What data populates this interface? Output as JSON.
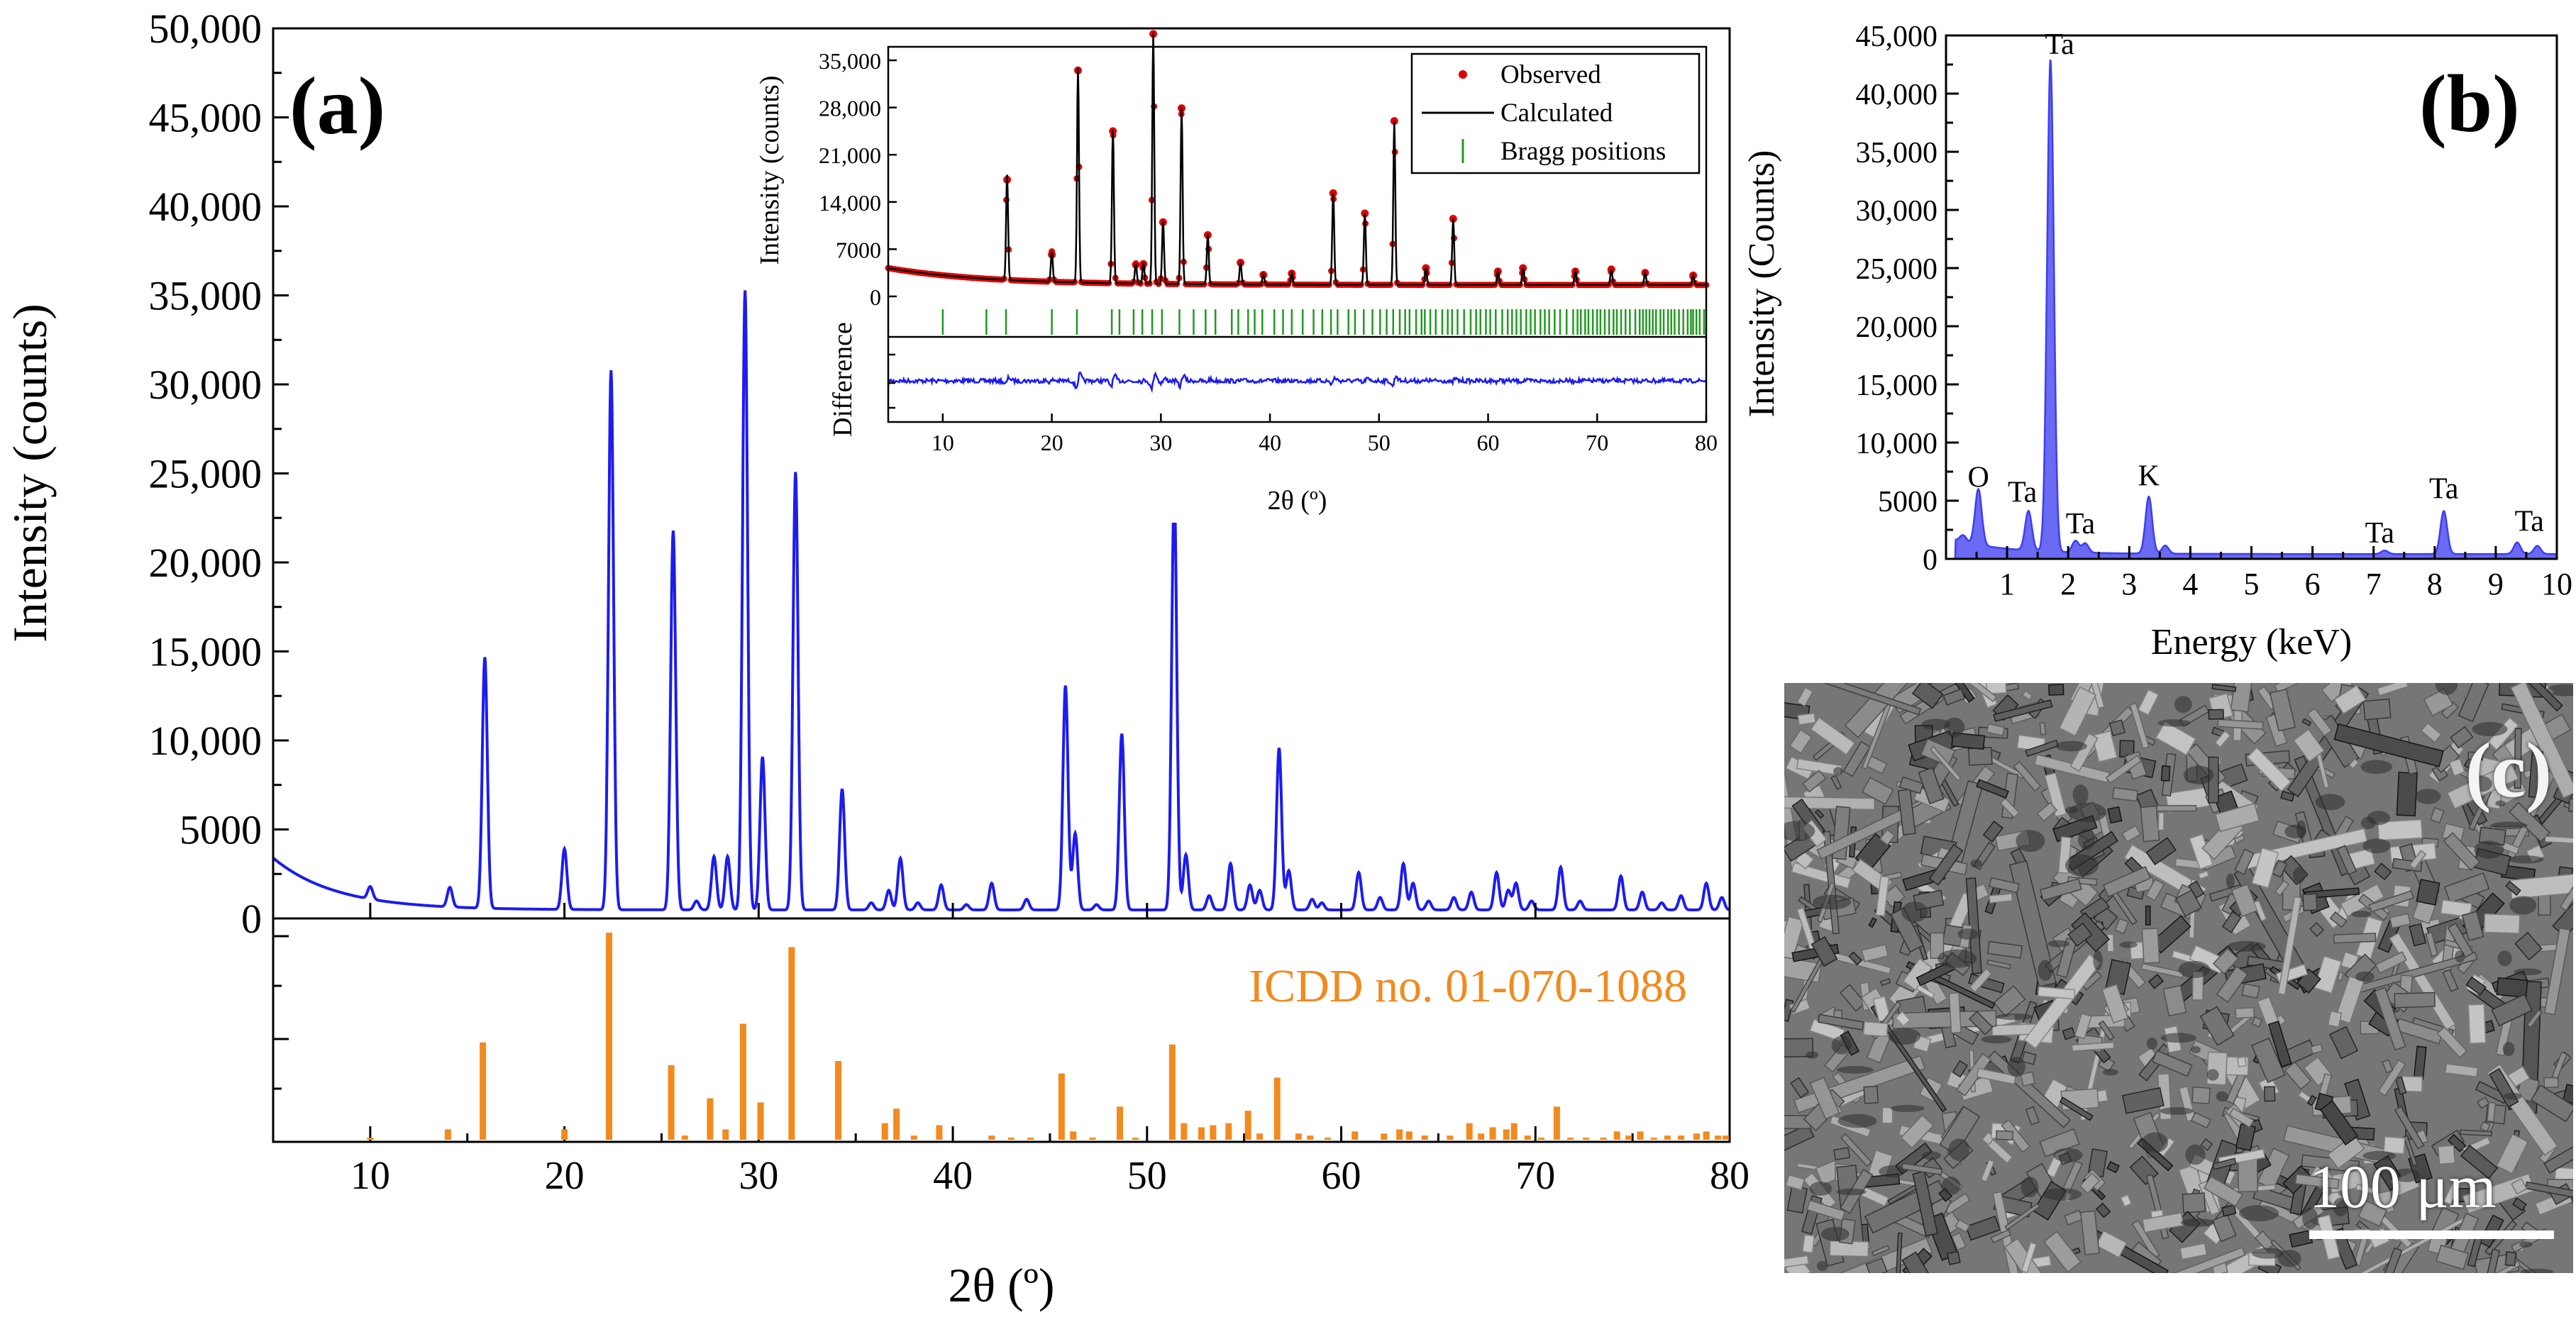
{
  "colors": {
    "xrd": "#1c1cf0",
    "icdd": "#f28a1e",
    "observed": "#e00000",
    "calculated": "#000000",
    "bragg": "#1f9a1f",
    "difference": "#1c1cf0",
    "eds": "#3e3ef0",
    "eds_fill": "#6a6af2"
  },
  "chart_data": [
    {
      "id": "a",
      "type": "line",
      "panel_label": "(a)",
      "xlabel": "2θ (º)",
      "ylabel": "Intensity (counts)",
      "xlim": [
        5,
        80
      ],
      "ylim": [
        0,
        50000
      ],
      "xticks": [
        "10",
        "20",
        "30",
        "40",
        "50",
        "60",
        "70",
        "80"
      ],
      "yticks": [
        "0",
        "5000",
        "10,000",
        "15,000",
        "20,000",
        "25,000",
        "30,000",
        "35,000",
        "40,000",
        "45,000",
        "50,000"
      ],
      "background": {
        "at_5": 3400,
        "decay": 3.2,
        "base": 480
      },
      "peaks": [
        [
          10.0,
          700
        ],
        [
          14.1,
          1100
        ],
        [
          15.9,
          14100
        ],
        [
          20.0,
          3400
        ],
        [
          22.4,
          30300
        ],
        [
          25.6,
          21300
        ],
        [
          26.8,
          500
        ],
        [
          27.7,
          3000
        ],
        [
          28.4,
          3000
        ],
        [
          29.3,
          34800
        ],
        [
          30.2,
          8600
        ],
        [
          31.9,
          24600
        ],
        [
          34.3,
          6800
        ],
        [
          35.8,
          400
        ],
        [
          36.7,
          1100
        ],
        [
          37.3,
          2900
        ],
        [
          38.2,
          400
        ],
        [
          39.4,
          1400
        ],
        [
          40.7,
          300
        ],
        [
          42.0,
          1500
        ],
        [
          43.8,
          600
        ],
        [
          45.8,
          12600
        ],
        [
          46.3,
          4300
        ],
        [
          47.4,
          300
        ],
        [
          48.7,
          9900
        ],
        [
          51.4,
          23700
        ],
        [
          52.0,
          3100
        ],
        [
          53.2,
          800
        ],
        [
          54.3,
          2600
        ],
        [
          55.3,
          1400
        ],
        [
          55.8,
          1100
        ],
        [
          56.8,
          9100
        ],
        [
          57.3,
          2200
        ],
        [
          58.5,
          600
        ],
        [
          59.0,
          400
        ],
        [
          60.9,
          2100
        ],
        [
          62.0,
          700
        ],
        [
          63.2,
          2600
        ],
        [
          63.7,
          1500
        ],
        [
          64.5,
          500
        ],
        [
          65.8,
          700
        ],
        [
          66.7,
          1000
        ],
        [
          68.0,
          2100
        ],
        [
          68.6,
          1100
        ],
        [
          69.0,
          1500
        ],
        [
          69.8,
          500
        ],
        [
          71.3,
          2400
        ],
        [
          72.3,
          500
        ],
        [
          74.4,
          1900
        ],
        [
          75.5,
          1000
        ],
        [
          76.5,
          400
        ],
        [
          77.5,
          800
        ],
        [
          78.8,
          1500
        ],
        [
          79.6,
          700
        ]
      ]
    },
    {
      "id": "a-reference",
      "type": "bar",
      "label": "ICDD no. 01-070-1088",
      "xlim": [
        5,
        80
      ],
      "ylim": [
        0,
        100
      ],
      "bars": [
        [
          10.0,
          1
        ],
        [
          14.0,
          5
        ],
        [
          15.8,
          47
        ],
        [
          20.0,
          5
        ],
        [
          22.3,
          100
        ],
        [
          25.5,
          36
        ],
        [
          26.2,
          2
        ],
        [
          27.5,
          20
        ],
        [
          28.3,
          5
        ],
        [
          29.2,
          56
        ],
        [
          30.1,
          18
        ],
        [
          31.7,
          93
        ],
        [
          34.1,
          38
        ],
        [
          36.5,
          8
        ],
        [
          37.1,
          15
        ],
        [
          38.0,
          2
        ],
        [
          39.3,
          7
        ],
        [
          42.0,
          2
        ],
        [
          43.0,
          1
        ],
        [
          44.0,
          1
        ],
        [
          45.6,
          32
        ],
        [
          46.2,
          4
        ],
        [
          47.2,
          1
        ],
        [
          48.6,
          16
        ],
        [
          49.4,
          1
        ],
        [
          51.3,
          46
        ],
        [
          51.9,
          8
        ],
        [
          52.8,
          6
        ],
        [
          53.4,
          7
        ],
        [
          54.2,
          8
        ],
        [
          55.2,
          14
        ],
        [
          55.8,
          3
        ],
        [
          56.7,
          30
        ],
        [
          57.8,
          3
        ],
        [
          58.4,
          2
        ],
        [
          59.3,
          1
        ],
        [
          60.7,
          4
        ],
        [
          62.2,
          3
        ],
        [
          63.0,
          5
        ],
        [
          63.5,
          4
        ],
        [
          64.3,
          2
        ],
        [
          65.6,
          2
        ],
        [
          66.6,
          8
        ],
        [
          67.2,
          3
        ],
        [
          67.8,
          6
        ],
        [
          68.5,
          5
        ],
        [
          68.9,
          8
        ],
        [
          69.6,
          2
        ],
        [
          70.3,
          1
        ],
        [
          71.1,
          16
        ],
        [
          71.8,
          1
        ],
        [
          72.6,
          1
        ],
        [
          73.5,
          1
        ],
        [
          74.2,
          4
        ],
        [
          74.8,
          2
        ],
        [
          75.4,
          4
        ],
        [
          76.1,
          1
        ],
        [
          76.8,
          2
        ],
        [
          77.5,
          2
        ],
        [
          78.3,
          3
        ],
        [
          78.8,
          4
        ],
        [
          79.4,
          2
        ],
        [
          79.8,
          2
        ]
      ]
    },
    {
      "id": "a-inset",
      "type": "line",
      "ylabel": "Intensity (counts)",
      "ylabel_diff": "Difference",
      "xlabel": "2θ (º)",
      "xlim": [
        5,
        80
      ],
      "ylim": [
        -6000,
        37000
      ],
      "xticks": [
        "10",
        "20",
        "30",
        "40",
        "50",
        "60",
        "70",
        "80"
      ],
      "yticks": [
        "0",
        "7000",
        "14,000",
        "21,000",
        "28,000",
        "35,000"
      ],
      "legend": [
        "Observed",
        "Calculated",
        "Bragg positions"
      ],
      "legend_position": "top-right",
      "bragg_positions": [
        10.0,
        14.0,
        15.8,
        20.0,
        22.3,
        25.5,
        26.2,
        27.5,
        28.3,
        29.2,
        30.1,
        31.7,
        33.0,
        34.1,
        35.0,
        36.5,
        37.1,
        38.0,
        38.6,
        39.3,
        40.4,
        41.2,
        42.0,
        43.0,
        44.0,
        44.8,
        45.6,
        46.2,
        47.2,
        47.8,
        48.6,
        49.4,
        50.1,
        50.7,
        51.3,
        51.9,
        52.4,
        52.8,
        53.4,
        53.9,
        54.2,
        54.7,
        55.2,
        55.8,
        56.3,
        56.7,
        57.2,
        57.8,
        58.4,
        58.9,
        59.3,
        59.8,
        60.2,
        60.7,
        61.3,
        61.8,
        62.2,
        62.6,
        63.0,
        63.5,
        63.9,
        64.3,
        64.8,
        65.2,
        65.6,
        66.1,
        66.6,
        67.2,
        67.8,
        68.2,
        68.5,
        68.9,
        69.2,
        69.6,
        70.0,
        70.3,
        70.7,
        71.1,
        71.5,
        71.8,
        72.2,
        72.6,
        73.0,
        73.5,
        73.9,
        74.2,
        74.5,
        74.8,
        75.1,
        75.4,
        75.8,
        76.1,
        76.5,
        76.8,
        77.1,
        77.5,
        77.9,
        78.3,
        78.6,
        78.8,
        79.1,
        79.4,
        79.8
      ],
      "observed_peaks": [
        [
          15.9,
          15600
        ],
        [
          20.0,
          4500
        ],
        [
          22.4,
          31800
        ],
        [
          25.6,
          22800
        ],
        [
          27.7,
          3000
        ],
        [
          28.4,
          3100
        ],
        [
          29.3,
          37200
        ],
        [
          30.2,
          9300
        ],
        [
          31.9,
          26200
        ],
        [
          34.3,
          7400
        ],
        [
          37.3,
          3300
        ],
        [
          39.4,
          1500
        ],
        [
          42.0,
          1700
        ],
        [
          45.8,
          13600
        ],
        [
          48.7,
          10600
        ],
        [
          51.4,
          24300
        ],
        [
          54.3,
          2500
        ],
        [
          56.8,
          9800
        ],
        [
          60.9,
          2000
        ],
        [
          63.2,
          2500
        ],
        [
          68.0,
          2000
        ],
        [
          71.3,
          2300
        ],
        [
          74.4,
          1800
        ],
        [
          78.8,
          1400
        ]
      ]
    },
    {
      "id": "b",
      "type": "area",
      "panel_label": "(b)",
      "xlabel": "Energy (keV)",
      "ylabel": "Intensity (Counts)",
      "xlim": [
        0,
        10
      ],
      "ylim": [
        0,
        45000
      ],
      "xticks": [
        "1",
        "2",
        "3",
        "4",
        "5",
        "6",
        "7",
        "8",
        "9",
        "10"
      ],
      "yticks": [
        "0",
        "5000",
        "10,000",
        "15,000",
        "20,000",
        "25,000",
        "30,000",
        "35,000",
        "40,000",
        "45,000"
      ],
      "peaks": [
        [
          0.28,
          600
        ],
        [
          0.53,
          4800
        ],
        [
          1.35,
          3400
        ],
        [
          1.71,
          42300
        ],
        [
          2.12,
          1000
        ],
        [
          2.28,
          800
        ],
        [
          3.32,
          4900
        ],
        [
          3.59,
          700
        ],
        [
          7.18,
          300
        ],
        [
          8.15,
          3700
        ],
        [
          9.35,
          1000
        ],
        [
          9.68,
          700
        ]
      ],
      "annotations": [
        {
          "text": "O",
          "x": 0.53,
          "y": 6200
        },
        {
          "text": "Ta",
          "x": 1.25,
          "y": 4900
        },
        {
          "text": "Ta",
          "x": 1.86,
          "y": 43400
        },
        {
          "text": "Ta",
          "x": 2.2,
          "y": 2200
        },
        {
          "text": "K",
          "x": 3.32,
          "y": 6300
        },
        {
          "text": "Ta",
          "x": 7.1,
          "y": 1400
        },
        {
          "text": "Ta",
          "x": 8.15,
          "y": 5200
        },
        {
          "text": "Ta",
          "x": 9.55,
          "y": 2400
        }
      ]
    }
  ],
  "sem_panel": {
    "label": "(c)",
    "scale_bar": "100 μm"
  }
}
